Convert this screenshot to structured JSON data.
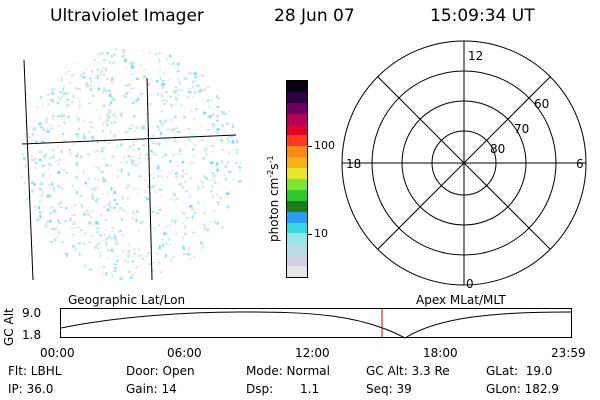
{
  "header": {
    "title": "Ultraviolet Imager",
    "date": "28 Jun 07",
    "time": "15:09:34 UT"
  },
  "colorbar": {
    "label": "photon cm",
    "label_exp1": "-2",
    "label_mid": "s",
    "label_exp2": "-1",
    "ticks": [
      "100",
      "10"
    ],
    "colors": [
      "#e6e6e6",
      "#cfcfe6",
      "#b8dce6",
      "#94e6e6",
      "#38d6e0",
      "#2a9df0",
      "#1a7d1a",
      "#2ec82e",
      "#7de62e",
      "#e6e62e",
      "#f5b21a",
      "#ff8a1a",
      "#ff3a1a",
      "#e0002a",
      "#b4005a",
      "#6a0060",
      "#2a0040",
      "#0a0014"
    ]
  },
  "polar": {
    "top_label": "12",
    "bottom_label": "0",
    "left_label": "18",
    "right_label": "6",
    "lat_labels": [
      "60",
      "70",
      "80"
    ]
  },
  "timeline": {
    "left_caption": "Geographic Lat/Lon",
    "right_caption": "Apex MLat/MLT",
    "axis_title": "GC Alt",
    "y_top": "9.0",
    "y_bottom": "1.8",
    "x_labels": [
      "00:00",
      "06:00",
      "12:00",
      "18:00",
      "23:59"
    ],
    "marker_color": "#e00000"
  },
  "footer": {
    "col1": [
      "Flt: LBHL",
      "IP: 36.0"
    ],
    "col2": [
      "Door: Open",
      "Gain: 14"
    ],
    "col3a": [
      "Mode: Normal",
      "Dsp:"
    ],
    "col3b_value": "1.1",
    "col4": [
      "GC Alt: 3.3 Re",
      "Seq: 39"
    ],
    "col5": [
      "GLat:  19.0",
      "GLon: 182.9"
    ]
  }
}
